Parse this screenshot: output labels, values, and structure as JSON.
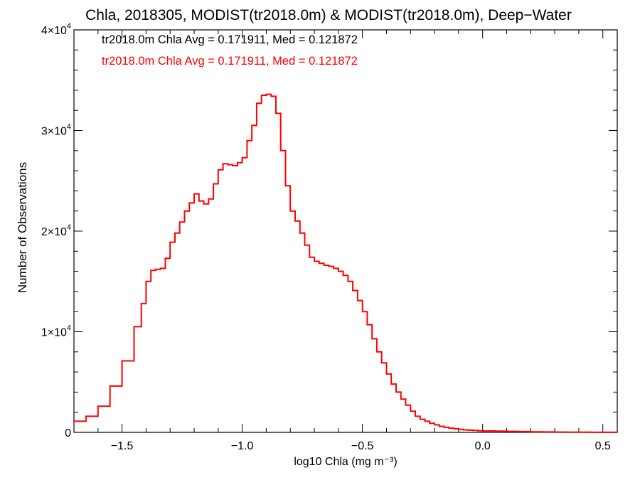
{
  "chart_data": {
    "type": "line",
    "title": "Chla, 2018305, MODIST(tr2018.0m) & MODIST(tr2018.0m), Deep−Water",
    "xlabel": "log10 Chla (mg m⁻³)",
    "ylabel": "Number of Observations",
    "xlim": [
      -1.7,
      0.56
    ],
    "ylim": [
      0,
      40000
    ],
    "x_ticks": [
      -1.5,
      -1.0,
      -0.5,
      0.0,
      0.5
    ],
    "x_tick_labels": [
      "−1.5",
      "−1.0",
      "−0.5",
      "0.0",
      "0.5"
    ],
    "y_ticks": [
      0,
      10000,
      20000,
      30000,
      40000
    ],
    "y_tick_labels": [
      {
        "mantissa": "0",
        "exp": ""
      },
      {
        "mantissa": "1×10",
        "exp": "4"
      },
      {
        "mantissa": "2×10",
        "exp": "4"
      },
      {
        "mantissa": "3×10",
        "exp": "4"
      },
      {
        "mantissa": "4×10",
        "exp": "4"
      }
    ],
    "grid": false,
    "annotations": [
      {
        "text": "tr2018.0m Chla Avg = 0.171911, Med = 0.121872",
        "color": "#000000"
      },
      {
        "text": "tr2018.0m Chla Avg = 0.171911, Med = 0.121872",
        "color": "#ff0000"
      }
    ],
    "series": [
      {
        "color": "#ff0000",
        "x": [
          -1.7,
          -1.65,
          -1.6,
          -1.55,
          -1.5,
          -1.45,
          -1.42,
          -1.4,
          -1.38,
          -1.36,
          -1.34,
          -1.32,
          -1.3,
          -1.28,
          -1.26,
          -1.24,
          -1.22,
          -1.2,
          -1.18,
          -1.16,
          -1.14,
          -1.12,
          -1.1,
          -1.08,
          -1.06,
          -1.04,
          -1.02,
          -1.0,
          -0.98,
          -0.96,
          -0.94,
          -0.92,
          -0.9,
          -0.88,
          -0.86,
          -0.84,
          -0.82,
          -0.8,
          -0.78,
          -0.76,
          -0.74,
          -0.72,
          -0.7,
          -0.68,
          -0.66,
          -0.64,
          -0.62,
          -0.6,
          -0.58,
          -0.56,
          -0.54,
          -0.52,
          -0.5,
          -0.48,
          -0.46,
          -0.44,
          -0.42,
          -0.4,
          -0.38,
          -0.36,
          -0.34,
          -0.32,
          -0.3,
          -0.28,
          -0.26,
          -0.24,
          -0.22,
          -0.2,
          -0.18,
          -0.16,
          -0.14,
          -0.12,
          -0.1,
          -0.08,
          -0.06,
          -0.04,
          -0.02,
          0.0,
          0.05,
          0.1,
          0.15,
          0.2,
          0.25,
          0.3,
          0.35,
          0.4,
          0.45,
          0.5,
          0.56
        ],
        "values": [
          1100,
          1600,
          2600,
          4600,
          7100,
          10500,
          12800,
          15000,
          16100,
          16200,
          16300,
          17300,
          18900,
          19800,
          20900,
          22000,
          22800,
          23700,
          23000,
          22700,
          23200,
          24700,
          26100,
          26700,
          26600,
          26500,
          26800,
          27300,
          29000,
          30500,
          32700,
          33500,
          33600,
          33400,
          31700,
          28000,
          24500,
          22000,
          21000,
          19800,
          18600,
          17400,
          17000,
          16800,
          16600,
          16500,
          16300,
          16000,
          15600,
          15000,
          14100,
          13100,
          12000,
          10700,
          9300,
          8000,
          6900,
          5800,
          4800,
          4000,
          3300,
          2700,
          2100,
          1600,
          1300,
          1100,
          900,
          750,
          600,
          500,
          420,
          350,
          300,
          250,
          220,
          190,
          160,
          140,
          120,
          100,
          80,
          60,
          40,
          30,
          20,
          15,
          10,
          5,
          0
        ]
      }
    ]
  }
}
